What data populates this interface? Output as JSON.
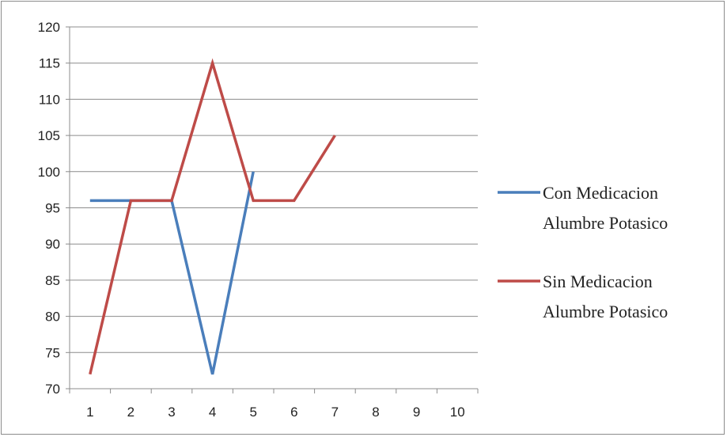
{
  "chart_data": {
    "type": "line",
    "title": "",
    "xlabel": "",
    "ylabel": "",
    "categories": [
      "1",
      "2",
      "3",
      "4",
      "5",
      "6",
      "7",
      "8",
      "9",
      "10"
    ],
    "ylim": [
      70,
      120
    ],
    "yticks": [
      70,
      75,
      80,
      85,
      90,
      95,
      100,
      105,
      110,
      115,
      120
    ],
    "grid": true,
    "legend_position": "right",
    "series": [
      {
        "name_lines": [
          "Con Medicacion",
          "Alumbre Potasico"
        ],
        "color": "#4a7ebb",
        "values": [
          96,
          96,
          96,
          72,
          100,
          null,
          null,
          null,
          null,
          null
        ]
      },
      {
        "name_lines": [
          "Sin Medicacion",
          "Alumbre Potasico"
        ],
        "color": "#be4b48",
        "values": [
          72,
          96,
          96,
          115,
          96,
          96,
          105,
          null,
          null,
          null
        ]
      }
    ]
  }
}
